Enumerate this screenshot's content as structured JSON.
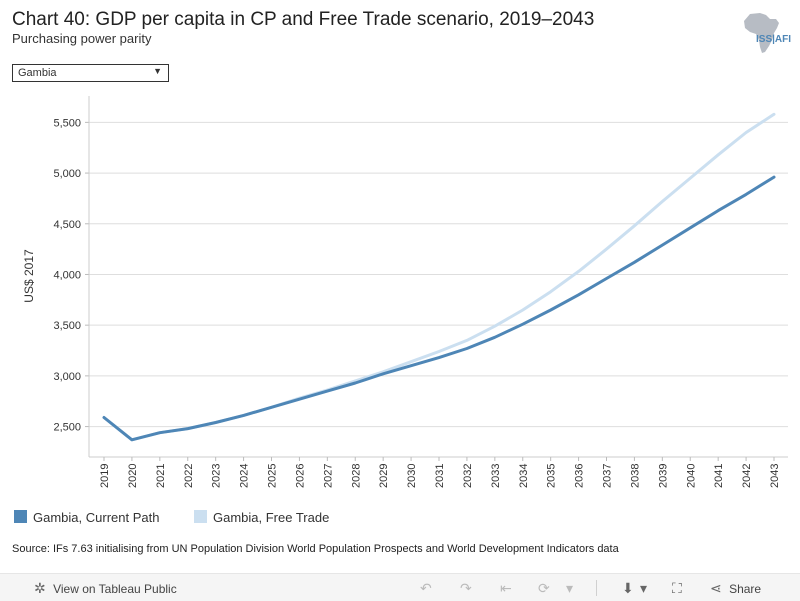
{
  "header": {
    "title": "Chart 40: GDP per capita in CP and Free Trade scenario, 2019–2043",
    "subtitle": "Purchasing power parity",
    "logo_text": "ISS|AFI"
  },
  "filter": {
    "selected": "Gambia",
    "arrow": "▼"
  },
  "chart_data": {
    "type": "line",
    "title": "Chart 40: GDP per capita in CP and Free Trade scenario, 2019–2043",
    "subtitle": "Purchasing power parity",
    "xlabel": "",
    "ylabel": "US$ 2017",
    "ylim": [
      2200,
      5760
    ],
    "yticks": [
      2500,
      3000,
      3500,
      4000,
      4500,
      5000,
      5500
    ],
    "ytick_labels": [
      "2,500",
      "3,000",
      "3,500",
      "4,000",
      "4,500",
      "5,000",
      "5,500"
    ],
    "x": [
      "2019",
      "2020",
      "2021",
      "2022",
      "2023",
      "2024",
      "2025",
      "2026",
      "2027",
      "2028",
      "2029",
      "2030",
      "2031",
      "2032",
      "2033",
      "2034",
      "2035",
      "2036",
      "2037",
      "2038",
      "2039",
      "2040",
      "2041",
      "2042",
      "2043"
    ],
    "series": [
      {
        "name": "Gambia, Current Path",
        "color": "#4e86b6",
        "values": [
          2590,
          2370,
          2440,
          2480,
          2540,
          2610,
          2690,
          2770,
          2850,
          2930,
          3020,
          3100,
          3180,
          3270,
          3380,
          3510,
          3650,
          3800,
          3960,
          4120,
          4290,
          4460,
          4630,
          4790,
          4960
        ]
      },
      {
        "name": "Gambia, Free Trade",
        "color": "#cbdff0",
        "values": [
          2590,
          2370,
          2440,
          2480,
          2540,
          2610,
          2690,
          2780,
          2860,
          2950,
          3040,
          3140,
          3240,
          3350,
          3490,
          3650,
          3830,
          4030,
          4250,
          4480,
          4720,
          4950,
          5180,
          5400,
          5580
        ]
      }
    ],
    "grid": true,
    "legend_position": "bottom-left"
  },
  "source": "Source: IFs 7.63 initialising from UN Population Division World Population Prospects and World Development Indicators data",
  "footer": {
    "view_label": "View on Tableau Public",
    "share_label": "Share",
    "tableau_icon": "✲",
    "undo_icon": "↶",
    "redo_icon": "↷",
    "revert_icon": "⇤",
    "refresh_icon": "⟳",
    "dropdown_icon": "▾",
    "download_icon": "⬇",
    "fullscreen_icon": "⛶",
    "share_icon": "⋖"
  }
}
